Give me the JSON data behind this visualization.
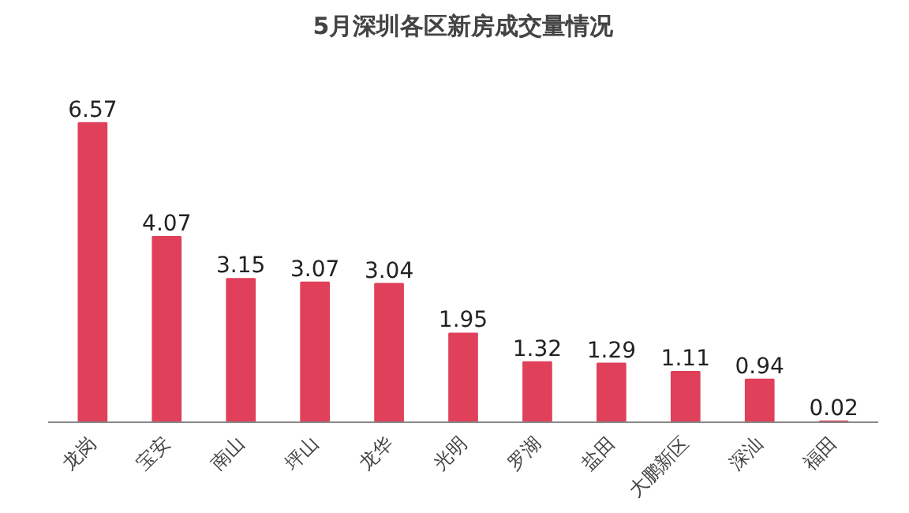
{
  "chart_data": {
    "type": "bar",
    "title": "5月深圳各区新房成交量情况",
    "categories": [
      "龙岗",
      "宝安",
      "南山",
      "坪山",
      "龙华",
      "光明",
      "罗湖",
      "盐田",
      "大鹏新区",
      "深汕",
      "福田"
    ],
    "values": [
      6.57,
      4.07,
      3.15,
      3.07,
      3.04,
      1.95,
      1.32,
      1.29,
      1.11,
      0.94,
      0.02
    ],
    "color": "#e0405a",
    "data_labels": true
  }
}
